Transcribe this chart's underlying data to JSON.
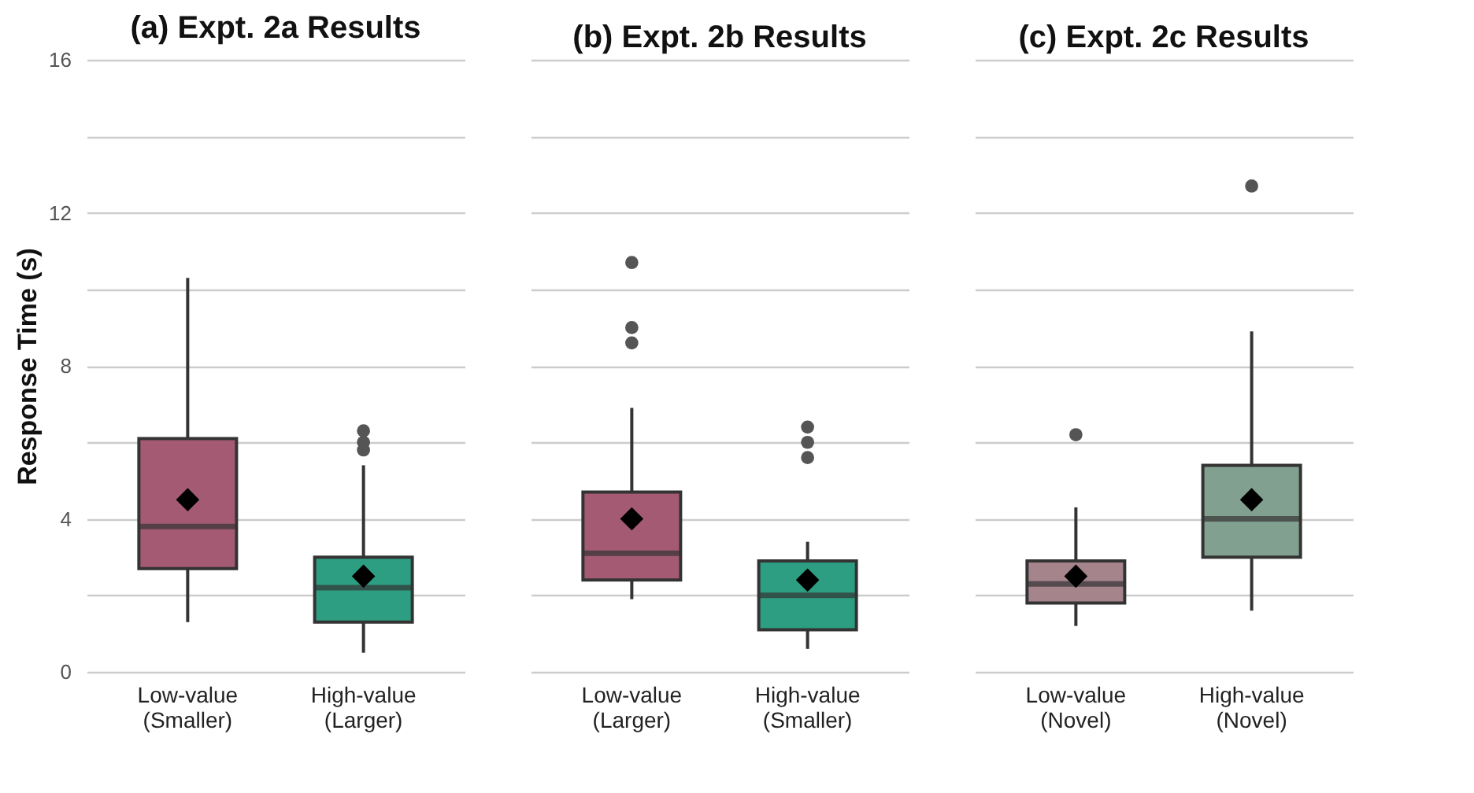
{
  "chart_data": [
    {
      "type": "box",
      "title": "(a) Expt. 2a Results",
      "ylabel": "Response Time (s)",
      "categories": [
        "Low-value\n(Smaller)",
        "High-value\n(Larger)"
      ],
      "colors": [
        "#a55a73",
        "#2e9e82"
      ],
      "ylim": [
        0,
        16
      ],
      "yticks": [
        0,
        {
          "value": 2,
          "label": null
        },
        4,
        {
          "value": 6,
          "label": null
        },
        8,
        {
          "value": 10,
          "label": null
        },
        12,
        {
          "value": 14,
          "label": null
        },
        16
      ],
      "grid": "y",
      "boxes": [
        {
          "low": 1.3,
          "q1": 2.7,
          "median": 3.8,
          "q3": 6.1,
          "high": 10.3,
          "mean": 4.5
        },
        {
          "low": 0.5,
          "q1": 1.3,
          "median": 2.2,
          "q3": 3.0,
          "high": 5.4,
          "mean": 2.5,
          "outliers": [
            5.8,
            6.0,
            6.3
          ]
        }
      ]
    },
    {
      "type": "box",
      "title": "(b) Expt. 2b Results",
      "categories": [
        "Low-value\n(Larger)",
        "High-value\n(Smaller)"
      ],
      "colors": [
        "#a55a73",
        "#2e9e82"
      ],
      "ylim": [
        0,
        16
      ],
      "yticks": [
        0,
        {
          "value": 2,
          "label": null
        },
        4,
        {
          "value": 6,
          "label": null
        },
        8,
        {
          "value": 10,
          "label": null
        },
        12,
        {
          "value": 14,
          "label": null
        },
        16
      ],
      "grid": "y",
      "tick_labels": "x",
      "boxes": [
        {
          "low": 1.9,
          "q1": 2.4,
          "median": 3.1,
          "q3": 4.7,
          "high": 6.9,
          "mean": 4.0,
          "outliers": [
            8.6,
            9.0,
            10.7
          ]
        },
        {
          "low": 0.6,
          "q1": 1.1,
          "median": 2.0,
          "q3": 2.9,
          "high": 3.4,
          "mean": 2.4,
          "outliers": [
            5.6,
            6.0,
            6.4
          ]
        }
      ]
    },
    {
      "type": "box",
      "title": "(c) Expt. 2c Results",
      "categories": [
        "Low-value\n(Novel)",
        "High-value\n(Novel)"
      ],
      "colors": [
        "#a5848c",
        "#82a090"
      ],
      "ylim": [
        0,
        16
      ],
      "yticks": [
        0,
        {
          "value": 2,
          "label": null
        },
        4,
        {
          "value": 6,
          "label": null
        },
        8,
        {
          "value": 10,
          "label": null
        },
        12,
        {
          "value": 14,
          "label": null
        },
        16
      ],
      "grid": "y",
      "tick_labels": "x",
      "boxes": [
        {
          "low": 1.2,
          "q1": 1.8,
          "median": 2.3,
          "q3": 2.9,
          "high": 4.3,
          "mean": 2.5,
          "outliers": [
            6.2
          ]
        },
        {
          "low": 1.6,
          "q1": 3.0,
          "median": 4.0,
          "q3": 5.4,
          "high": 8.9,
          "mean": 4.5,
          "outliers": [
            12.7
          ]
        }
      ]
    }
  ]
}
